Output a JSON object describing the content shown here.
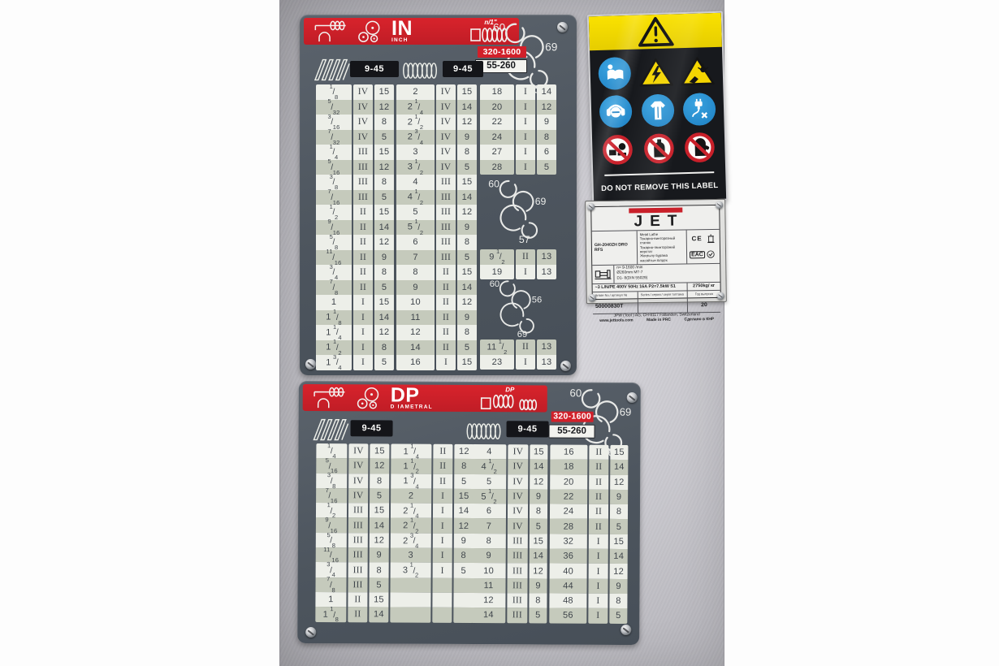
{
  "inch_plate": {
    "banner": {
      "title": "IN",
      "subtitle": "INCH",
      "lead_label": "n/1\""
    },
    "rpm_high": "320-1600",
    "rpm_low": "55-260",
    "pitch_left": "9-45",
    "pitch_right": "9-45",
    "gear_top": {
      "g1": "60",
      "g2": "69",
      "g3": "56"
    },
    "gear_mid": {
      "g1": "60",
      "g2": "69",
      "g3": "57"
    },
    "gear_bot": {
      "g1": "60",
      "g2": "56",
      "g3": "69"
    },
    "rows_a": [
      [
        "1/8",
        "IV",
        "15"
      ],
      [
        "5/32",
        "IV",
        "12"
      ],
      [
        "3/16",
        "IV",
        "8"
      ],
      [
        "7/32",
        "IV",
        "5"
      ],
      [
        "1/4",
        "III",
        "15"
      ],
      [
        "5/16",
        "III",
        "12"
      ],
      [
        "3/8",
        "III",
        "8"
      ],
      [
        "7/16",
        "III",
        "5"
      ],
      [
        "1/2",
        "II",
        "15"
      ],
      [
        "9/16",
        "II",
        "14"
      ],
      [
        "5/8",
        "II",
        "12"
      ],
      [
        "11/16",
        "II",
        "9"
      ],
      [
        "3/4",
        "II",
        "8"
      ],
      [
        "7/8",
        "II",
        "5"
      ],
      [
        "1",
        "I",
        "15"
      ],
      [
        "1 1/8",
        "I",
        "14"
      ],
      [
        "1 1/4",
        "I",
        "12"
      ],
      [
        "1 1/2",
        "I",
        "8"
      ],
      [
        "1 3/4",
        "I",
        "5"
      ]
    ],
    "rows_b": [
      [
        "2",
        "IV",
        "15"
      ],
      [
        "2 1/4",
        "IV",
        "14"
      ],
      [
        "2 1/2",
        "IV",
        "12"
      ],
      [
        "2 3/4",
        "IV",
        "9"
      ],
      [
        "3",
        "IV",
        "8"
      ],
      [
        "3 1/2",
        "IV",
        "5"
      ],
      [
        "4",
        "III",
        "15"
      ],
      [
        "4 1/2",
        "III",
        "14"
      ],
      [
        "5",
        "III",
        "12"
      ],
      [
        "5 1/2",
        "III",
        "9"
      ],
      [
        "6",
        "III",
        "8"
      ],
      [
        "7",
        "III",
        "5"
      ],
      [
        "8",
        "II",
        "15"
      ],
      [
        "9",
        "II",
        "14"
      ],
      [
        "10",
        "II",
        "12"
      ],
      [
        "11",
        "II",
        "9"
      ],
      [
        "12",
        "II",
        "8"
      ],
      [
        "14",
        "II",
        "5"
      ],
      [
        "16",
        "I",
        "15"
      ]
    ],
    "rows_c_top": [
      [
        "18",
        "I",
        "14"
      ],
      [
        "20",
        "I",
        "12"
      ],
      [
        "22",
        "I",
        "9"
      ],
      [
        "24",
        "I",
        "8"
      ],
      [
        "27",
        "I",
        "6"
      ],
      [
        "28",
        "I",
        "5"
      ]
    ],
    "rows_c_mid": [
      [
        "9 1/2",
        "II",
        "13"
      ],
      [
        "19",
        "I",
        "13"
      ]
    ],
    "rows_c_bot": [
      [
        "11 1/2",
        "II",
        "13"
      ],
      [
        "23",
        "I",
        "13"
      ]
    ]
  },
  "dp_plate": {
    "banner": {
      "title": "DP",
      "subtitle": "D IAMETRAL",
      "lead_label": "DP"
    },
    "rpm_high": "320-1600",
    "rpm_low": "55-260",
    "pitch_left": "9-45",
    "pitch_right": "9-45",
    "gear_top": {
      "g1": "60",
      "g2": "69",
      "g3": "56"
    },
    "rows_a": [
      [
        "1/4",
        "IV",
        "15"
      ],
      [
        "5/16",
        "IV",
        "12"
      ],
      [
        "3/8",
        "IV",
        "8"
      ],
      [
        "7/16",
        "IV",
        "5"
      ],
      [
        "1/2",
        "III",
        "15"
      ],
      [
        "9/16",
        "III",
        "14"
      ],
      [
        "5/8",
        "III",
        "12"
      ],
      [
        "11/16",
        "III",
        "9"
      ],
      [
        "3/4",
        "III",
        "8"
      ],
      [
        "7/8",
        "III",
        "5"
      ],
      [
        "1",
        "II",
        "15"
      ],
      [
        "1 1/8",
        "II",
        "14"
      ]
    ],
    "rows_b": [
      [
        "1 1/4",
        "II",
        "12"
      ],
      [
        "1 1/2",
        "II",
        "8"
      ],
      [
        "1 3/4",
        "II",
        "5"
      ],
      [
        "2",
        "I",
        "15"
      ],
      [
        "2 1/4",
        "I",
        "14"
      ],
      [
        "2 1/2",
        "I",
        "12"
      ],
      [
        "2 3/4",
        "I",
        "9"
      ],
      [
        "3",
        "I",
        "8"
      ],
      [
        "3 1/2",
        "I",
        "5"
      ],
      [
        "",
        "",
        ""
      ],
      [
        "",
        "",
        ""
      ],
      [
        "",
        "",
        ""
      ]
    ],
    "rows_c": [
      [
        "4",
        "IV",
        "15"
      ],
      [
        "4 1/2",
        "IV",
        "14"
      ],
      [
        "5",
        "IV",
        "12"
      ],
      [
        "5 1/2",
        "IV",
        "9"
      ],
      [
        "6",
        "IV",
        "8"
      ],
      [
        "7",
        "IV",
        "5"
      ],
      [
        "8",
        "III",
        "15"
      ],
      [
        "9",
        "III",
        "14"
      ],
      [
        "10",
        "III",
        "12"
      ],
      [
        "11",
        "III",
        "9"
      ],
      [
        "12",
        "III",
        "8"
      ],
      [
        "14",
        "III",
        "5"
      ]
    ],
    "rows_d": [
      [
        "16",
        "II",
        "15"
      ],
      [
        "18",
        "II",
        "14"
      ],
      [
        "20",
        "II",
        "12"
      ],
      [
        "22",
        "II",
        "9"
      ],
      [
        "24",
        "II",
        "8"
      ],
      [
        "28",
        "II",
        "5"
      ],
      [
        "32",
        "I",
        "15"
      ],
      [
        "36",
        "I",
        "14"
      ],
      [
        "40",
        "I",
        "12"
      ],
      [
        "44",
        "I",
        "9"
      ],
      [
        "48",
        "I",
        "8"
      ],
      [
        "56",
        "I",
        "5"
      ]
    ]
  },
  "warning_label": {
    "footer": "DO NOT REMOVE THIS LABEL",
    "icons": [
      "general-warning",
      "read-manual",
      "electric-shock-warning",
      "hand-injury-warning",
      "wear-ear-eye-protection",
      "wear-protective-clothing",
      "disconnect-before-service",
      "no-reaching-into-machine",
      "no-loose-objects",
      "no-gloves"
    ]
  },
  "nameplate": {
    "brand": "JET",
    "model": "GH-2040ZH DRO RFS",
    "type_line1": "Metal Lathe",
    "type_line2": "Токарно-винторезный станок",
    "type_line3": "Токарно-гвинторізний верстат",
    "type_line4": "Жоңғылу бұрама жасайтын білдек",
    "marks": {
      "ce": "CE",
      "eac": "EAC"
    },
    "spec_line1": "n= 9-1600 /min",
    "spec_line2": "Ø260mm  MT-7",
    "spec_line3": "D1- 8(DIN 55029)",
    "power": "~3 L/N/PE 400V 50Hz 16A P2=7.5kW S1",
    "weight": "2750kg/ кг",
    "article_label": "Article No./ артикул №",
    "article_value": "50000830T",
    "series_label": "Series / серия / серія топтама",
    "year_label": "Год выпуска",
    "year_value": "20",
    "company": "JPW (Tool ) AG, CH-8117 Fällanden, Switzerland",
    "website": "www.jettools.com",
    "made_in": "Made in PRC",
    "made_in_cyr": "Сделано в КНР"
  },
  "colors": {
    "red": "#d1202a",
    "plate": "#4d555e",
    "cell_light": "#edefe9",
    "cell_dark": "#c5cabc",
    "blue_icon": "#1c7fc2",
    "yellow": "#f4d500"
  }
}
